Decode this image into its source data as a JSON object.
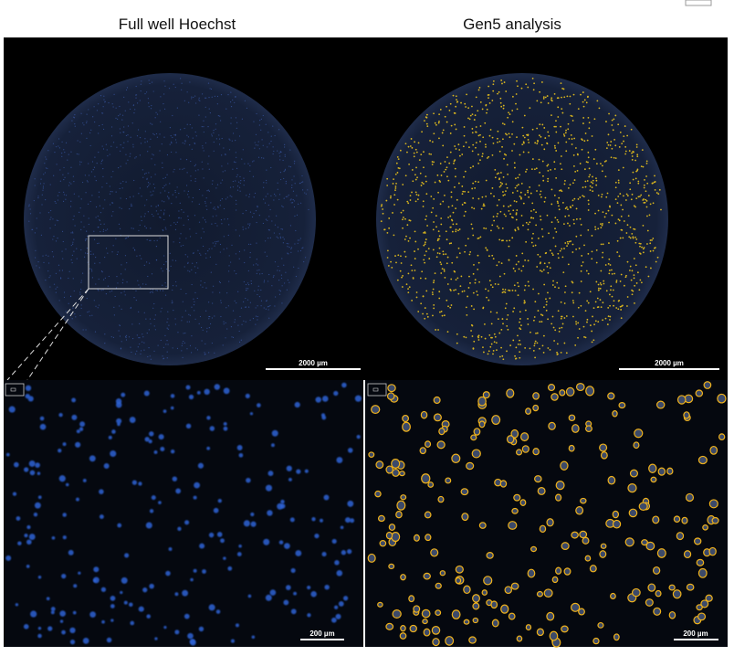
{
  "panels": [
    {
      "title": "Full well Hoechst",
      "scale_bar_top": "2000 µm",
      "scale_bar_bottom": "200 µm"
    },
    {
      "title": "Gen5 analysis",
      "scale_bar_top": "2000 µm",
      "scale_bar_bottom": "200 µm"
    }
  ]
}
